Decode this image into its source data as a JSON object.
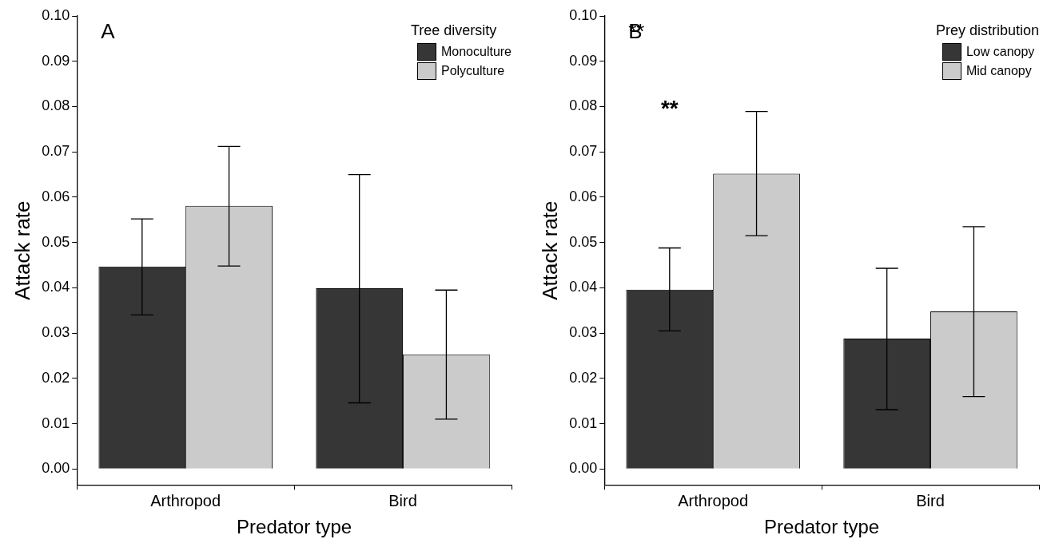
{
  "chart_data": [
    {
      "type": "bar",
      "xlabel": "Predator type",
      "ylabel": "Attack rate",
      "legend_title": "Tree diversity",
      "legend": "top right",
      "grid": false,
      "categories": [
        "Arthropod",
        "Bird"
      ],
      "series": [
        {
          "name": "Monoculture",
          "color": "#363636",
          "values": [
            0.0447,
            0.0399
          ],
          "errors": [
            [
              0.034,
              0.0552
            ],
            [
              0.0146,
              0.065
            ]
          ]
        },
        {
          "name": "Polyculture",
          "color": "#cbcbcb",
          "values": [
            0.0581,
            0.0253
          ],
          "errors": [
            [
              0.0448,
              0.0712
            ],
            [
              0.011,
              0.0395
            ]
          ]
        }
      ],
      "ylim": [
        -0.0035,
        0.1
      ],
      "yticks": [
        {
          "value": 0,
          "label": "0.00"
        },
        {
          "value": 0.01,
          "label": "0.01"
        },
        {
          "value": 0.02,
          "label": "0.02"
        },
        {
          "value": 0.03,
          "label": "0.03"
        },
        {
          "value": 0.04,
          "label": "0.04"
        },
        {
          "value": 0.05,
          "label": "0.05"
        },
        {
          "value": 0.06,
          "label": "0.06"
        },
        {
          "value": 0.07,
          "label": "0.07"
        },
        {
          "value": 0.08,
          "label": "0.08"
        },
        {
          "value": 0.09,
          "label": "0.09"
        },
        {
          "value": 0.1,
          "label": "0.10"
        }
      ],
      "annotations": [
        "A"
      ]
    },
    {
      "type": "bar",
      "xlabel": "Predator type",
      "ylabel": "Attack rate",
      "legend_title": "Prey distribution",
      "legend": "top right",
      "grid": false,
      "categories": [
        "Arthropod",
        "Bird"
      ],
      "series": [
        {
          "name": "Low canopy",
          "color": "#363636",
          "values": [
            0.0396,
            0.0288
          ],
          "errors": [
            [
              0.0305,
              0.0488
            ],
            [
              0.0131,
              0.0443
            ]
          ]
        },
        {
          "name": "Mid canopy",
          "color": "#cbcbcb",
          "values": [
            0.0652,
            0.0348
          ],
          "errors": [
            [
              0.0515,
              0.0789
            ],
            [
              0.016,
              0.0535
            ]
          ]
        }
      ],
      "ylim": [
        -0.0035,
        0.1
      ],
      "yticks": [
        {
          "value": 0,
          "label": "0.00"
        },
        {
          "value": 0.01,
          "label": "0.01"
        },
        {
          "value": 0.02,
          "label": "0.02"
        },
        {
          "value": 0.03,
          "label": "0.03"
        },
        {
          "value": 0.04,
          "label": "0.04"
        },
        {
          "value": 0.05,
          "label": "0.05"
        },
        {
          "value": 0.06,
          "label": "0.06"
        },
        {
          "value": 0.07,
          "label": "0.07"
        },
        {
          "value": 0.08,
          "label": "0.08"
        },
        {
          "value": 0.09,
          "label": "0.09"
        },
        {
          "value": 0.1,
          "label": "0.10"
        }
      ],
      "annotations": [
        "B",
        "**"
      ]
    }
  ]
}
